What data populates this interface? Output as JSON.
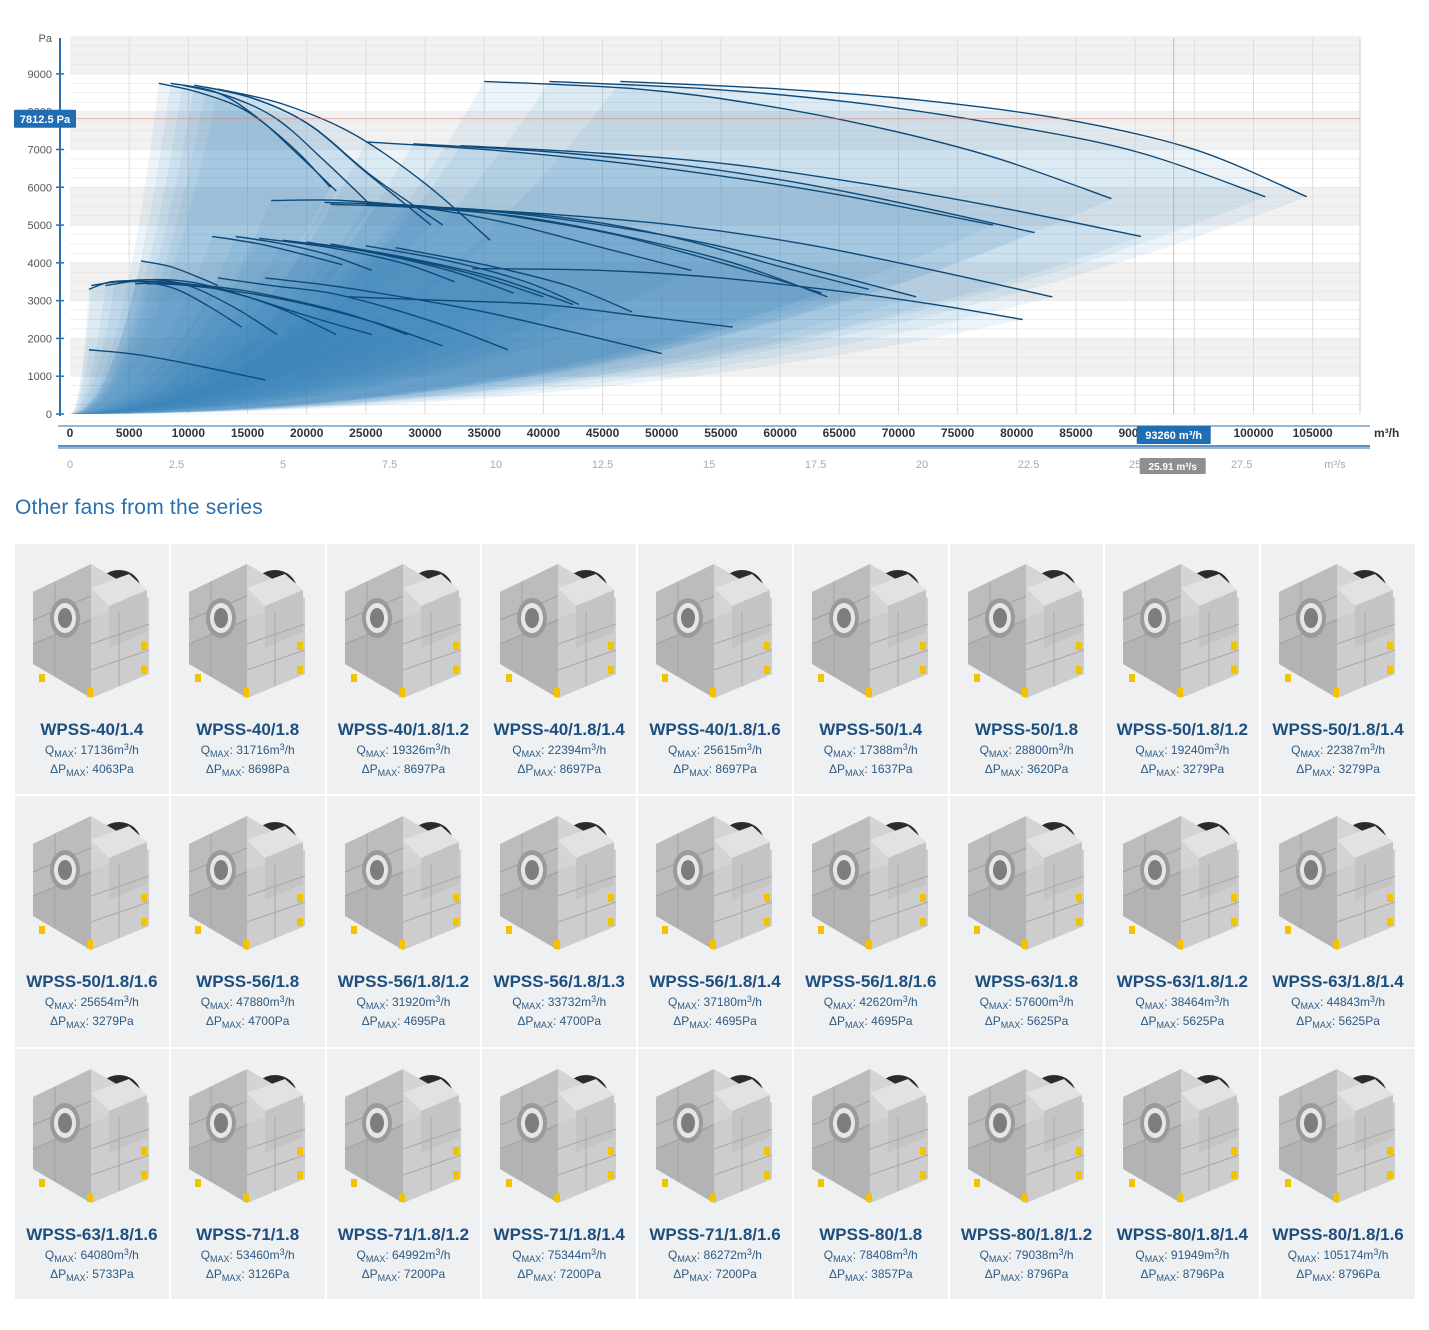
{
  "chart_data": {
    "type": "line",
    "y_unit": "Pa",
    "x_unit": "m³/h",
    "x2_unit": "m³/s",
    "xlim": [
      0,
      110000
    ],
    "ylim": [
      0,
      9500
    ],
    "x_ticks": [
      "0",
      "5000",
      "10000",
      "15000",
      "20000",
      "25000",
      "30000",
      "35000",
      "40000",
      "45000",
      "50000",
      "55000",
      "60000",
      "65000",
      "70000",
      "75000",
      "80000",
      "85000",
      "90000",
      "95000",
      "100000",
      "105000"
    ],
    "x2_ticks": [
      "0",
      "2.5",
      "5",
      "7.5",
      "10",
      "12.5",
      "15",
      "17.5",
      "20",
      "22.5",
      "25",
      "27.5"
    ],
    "y_ticks": [
      "0",
      "1000",
      "2000",
      "3000",
      "4000",
      "5000",
      "6000",
      "7000",
      "8000",
      "9000"
    ],
    "grid": true,
    "cursor": {
      "x": 93260,
      "y": 7812.5,
      "x_label": "93260 m³/h",
      "x2_label": "25.91 m³/s",
      "y_label": "7812.5 Pa"
    },
    "series": [
      {
        "x": [
          1600,
          5000,
          8000,
          12000,
          16500
        ],
        "y": [
          1700,
          1600,
          1450,
          1200,
          900
        ]
      },
      {
        "x": [
          1600,
          3500,
          6000,
          9000,
          12000,
          14500
        ],
        "y": [
          3300,
          3500,
          3500,
          3300,
          2800,
          2300
        ]
      },
      {
        "x": [
          1800,
          4000,
          7000,
          10000,
          14000,
          17500
        ],
        "y": [
          3400,
          3500,
          3550,
          3400,
          2800,
          2100
        ]
      },
      {
        "x": [
          3000,
          6500,
          10000,
          14000,
          18500,
          22500
        ],
        "y": [
          3400,
          3550,
          3500,
          3200,
          2700,
          2100
        ]
      },
      {
        "x": [
          3800,
          7500,
          11000,
          15000,
          20000,
          25500
        ],
        "y": [
          3500,
          3500,
          3400,
          3100,
          2600,
          2100
        ]
      },
      {
        "x": [
          5500,
          9000,
          14000,
          19000,
          24000,
          28500
        ],
        "y": [
          3450,
          3450,
          3300,
          3000,
          2600,
          2100
        ]
      },
      {
        "x": [
          6500,
          10000,
          15000,
          20000,
          26000,
          31500
        ],
        "y": [
          3450,
          3400,
          3200,
          2900,
          2400,
          1800
        ]
      },
      {
        "x": [
          6000,
          8500,
          11000,
          12500
        ],
        "y": [
          4050,
          3900,
          3600,
          3400
        ]
      },
      {
        "x": [
          12500,
          17000,
          22000,
          27000,
          32000,
          37000
        ],
        "y": [
          3600,
          3400,
          3200,
          2800,
          2300,
          1700
        ]
      },
      {
        "x": [
          16500,
          22000,
          28000,
          35000,
          42000,
          50000
        ],
        "y": [
          3600,
          3400,
          3100,
          2700,
          2200,
          1600
        ]
      },
      {
        "x": [
          23500,
          32000,
          40000,
          48000,
          56000
        ],
        "y": [
          3100,
          3000,
          2900,
          2600,
          2300
        ]
      },
      {
        "x": [
          12000,
          16000,
          20000,
          23000
        ],
        "y": [
          4700,
          4500,
          4200,
          3950
        ]
      },
      {
        "x": [
          14000,
          18000,
          22000,
          25500
        ],
        "y": [
          4700,
          4500,
          4200,
          3800
        ]
      },
      {
        "x": [
          16000,
          22000,
          28000,
          32500
        ],
        "y": [
          4650,
          4400,
          4000,
          3500
        ]
      },
      {
        "x": [
          18000,
          25000,
          32000,
          37500
        ],
        "y": [
          4600,
          4300,
          3800,
          3200
        ]
      },
      {
        "x": [
          20000,
          27000,
          34000,
          40000
        ],
        "y": [
          4550,
          4200,
          3700,
          3100
        ]
      },
      {
        "x": [
          22000,
          29000,
          36000,
          42500
        ],
        "y": [
          4500,
          4100,
          3600,
          2900
        ]
      },
      {
        "x": [
          25000,
          32000,
          38500,
          43000
        ],
        "y": [
          4450,
          4050,
          3500,
          2900
        ]
      },
      {
        "x": [
          27500,
          35000,
          42000,
          47500
        ],
        "y": [
          4400,
          3950,
          3400,
          2700
        ]
      },
      {
        "x": [
          7500,
          11000,
          15000,
          19000,
          22000
        ],
        "y": [
          8750,
          8500,
          8000,
          7000,
          6000
        ]
      },
      {
        "x": [
          8500,
          12500,
          16000,
          19500,
          22500
        ],
        "y": [
          8750,
          8500,
          7800,
          6800,
          5900
        ]
      },
      {
        "x": [
          9500,
          13500,
          17500,
          21500,
          25500
        ],
        "y": [
          8700,
          8400,
          7800,
          6700,
          5500
        ]
      },
      {
        "x": [
          10500,
          15000,
          20000,
          25000,
          30500
        ],
        "y": [
          8700,
          8400,
          7700,
          6400,
          5000
        ]
      },
      {
        "x": [
          11500,
          16000,
          20500,
          25500,
          31500
        ],
        "y": [
          8650,
          8300,
          7600,
          6300,
          5000
        ]
      },
      {
        "x": [
          12500,
          18000,
          24000,
          30000,
          35500
        ],
        "y": [
          8600,
          8200,
          7400,
          6100,
          4600
        ]
      },
      {
        "x": [
          17000,
          23000,
          30000,
          37000,
          45000,
          52500
        ],
        "y": [
          5650,
          5650,
          5450,
          5050,
          4400,
          3800
        ]
      },
      {
        "x": [
          21500,
          30000,
          38000,
          46000,
          55000,
          63500
        ],
        "y": [
          5600,
          5500,
          5200,
          4750,
          4000,
          3200
        ]
      },
      {
        "x": [
          22000,
          30000,
          38500,
          47000,
          56000,
          64000
        ],
        "y": [
          5550,
          5450,
          5200,
          4700,
          4000,
          3100
        ]
      },
      {
        "x": [
          25000,
          35000,
          44000,
          52000,
          60000,
          67500
        ],
        "y": [
          5550,
          5400,
          5100,
          4600,
          3900,
          3300
        ]
      },
      {
        "x": [
          26000,
          36000,
          45000,
          54000,
          63000,
          71500
        ],
        "y": [
          5550,
          5350,
          5000,
          4500,
          3800,
          3100
        ]
      },
      {
        "x": [
          29000,
          40000,
          51000,
          62000,
          73000,
          83000
        ],
        "y": [
          5500,
          5300,
          5000,
          4500,
          3800,
          3100
        ]
      },
      {
        "x": [
          34000,
          45000,
          55000,
          65000,
          73000,
          80500
        ],
        "y": [
          3850,
          3800,
          3600,
          3250,
          2900,
          2500
        ]
      },
      {
        "x": [
          25000,
          35000,
          45000,
          55000,
          65000,
          78000
        ],
        "y": [
          7200,
          7000,
          6700,
          6300,
          5800,
          5000
        ]
      },
      {
        "x": [
          29000,
          40000,
          50000,
          60000,
          70000,
          81500
        ],
        "y": [
          7150,
          6950,
          6650,
          6200,
          5600,
          4800
        ]
      },
      {
        "x": [
          33000,
          45000,
          56000,
          67000,
          78000,
          90500
        ],
        "y": [
          7100,
          6900,
          6600,
          6100,
          5500,
          4700
        ]
      },
      {
        "x": [
          35000,
          48000,
          58000,
          68000,
          78000,
          88000
        ],
        "y": [
          8800,
          8600,
          8200,
          7600,
          6800,
          5700
        ]
      },
      {
        "x": [
          40500,
          54000,
          66000,
          78000,
          90000,
          101000
        ],
        "y": [
          8800,
          8600,
          8250,
          7700,
          6950,
          5750
        ]
      },
      {
        "x": [
          46500,
          60000,
          72000,
          84000,
          95000,
          104500
        ],
        "y": [
          8800,
          8600,
          8300,
          7800,
          7000,
          5750
        ]
      }
    ]
  },
  "section_title": "Other fans from the series",
  "fans": [
    {
      "name": "WPSS-40/1.4",
      "q": "17136",
      "p": "4063"
    },
    {
      "name": "WPSS-40/1.8",
      "q": "31716",
      "p": "8698"
    },
    {
      "name": "WPSS-40/1.8/1.2",
      "q": "19326",
      "p": "8697"
    },
    {
      "name": "WPSS-40/1.8/1.4",
      "q": "22394",
      "p": "8697"
    },
    {
      "name": "WPSS-40/1.8/1.6",
      "q": "25615",
      "p": "8697"
    },
    {
      "name": "WPSS-50/1.4",
      "q": "17388",
      "p": "1637"
    },
    {
      "name": "WPSS-50/1.8",
      "q": "28800",
      "p": "3620"
    },
    {
      "name": "WPSS-50/1.8/1.2",
      "q": "19240",
      "p": "3279"
    },
    {
      "name": "WPSS-50/1.8/1.4",
      "q": "22387",
      "p": "3279"
    },
    {
      "name": "WPSS-50/1.8/1.6",
      "q": "25654",
      "p": "3279"
    },
    {
      "name": "WPSS-56/1.8",
      "q": "47880",
      "p": "4700"
    },
    {
      "name": "WPSS-56/1.8/1.2",
      "q": "31920",
      "p": "4695"
    },
    {
      "name": "WPSS-56/1.8/1.3",
      "q": "33732",
      "p": "4700"
    },
    {
      "name": "WPSS-56/1.8/1.4",
      "q": "37180",
      "p": "4695"
    },
    {
      "name": "WPSS-56/1.8/1.6",
      "q": "42620",
      "p": "4695"
    },
    {
      "name": "WPSS-63/1.8",
      "q": "57600",
      "p": "5625"
    },
    {
      "name": "WPSS-63/1.8/1.2",
      "q": "38464",
      "p": "5625"
    },
    {
      "name": "WPSS-63/1.8/1.4",
      "q": "44843",
      "p": "5625"
    },
    {
      "name": "WPSS-63/1.8/1.6",
      "q": "64080",
      "p": "5733"
    },
    {
      "name": "WPSS-71/1.8",
      "q": "53460",
      "p": "3126"
    },
    {
      "name": "WPSS-71/1.8/1.2",
      "q": "64992",
      "p": "7200"
    },
    {
      "name": "WPSS-71/1.8/1.4",
      "q": "75344",
      "p": "7200"
    },
    {
      "name": "WPSS-71/1.8/1.6",
      "q": "86272",
      "p": "7200"
    },
    {
      "name": "WPSS-80/1.8",
      "q": "78408",
      "p": "3857"
    },
    {
      "name": "WPSS-80/1.8/1.2",
      "q": "79038",
      "p": "8796"
    },
    {
      "name": "WPSS-80/1.8/1.4",
      "q": "91949",
      "p": "8796"
    },
    {
      "name": "WPSS-80/1.8/1.6",
      "q": "105174",
      "p": "8796"
    }
  ],
  "labels": {
    "q_sym": "Q",
    "max": "MAX",
    "q_unit": "m",
    "q_unit_exp": "3",
    "q_unit_tail": "/h",
    "p_sym": "ΔP",
    "p_unit": "Pa"
  },
  "colors": {
    "curve": "#0d4a7a",
    "fill": "#2f7fb5",
    "axis": "#2a6fae",
    "badge": "#1f6db3",
    "badge_gray": "#8f8f8f",
    "crosshair": "#e07a6f",
    "grid": "#e3e3e3",
    "band": "#f1f1f1"
  }
}
